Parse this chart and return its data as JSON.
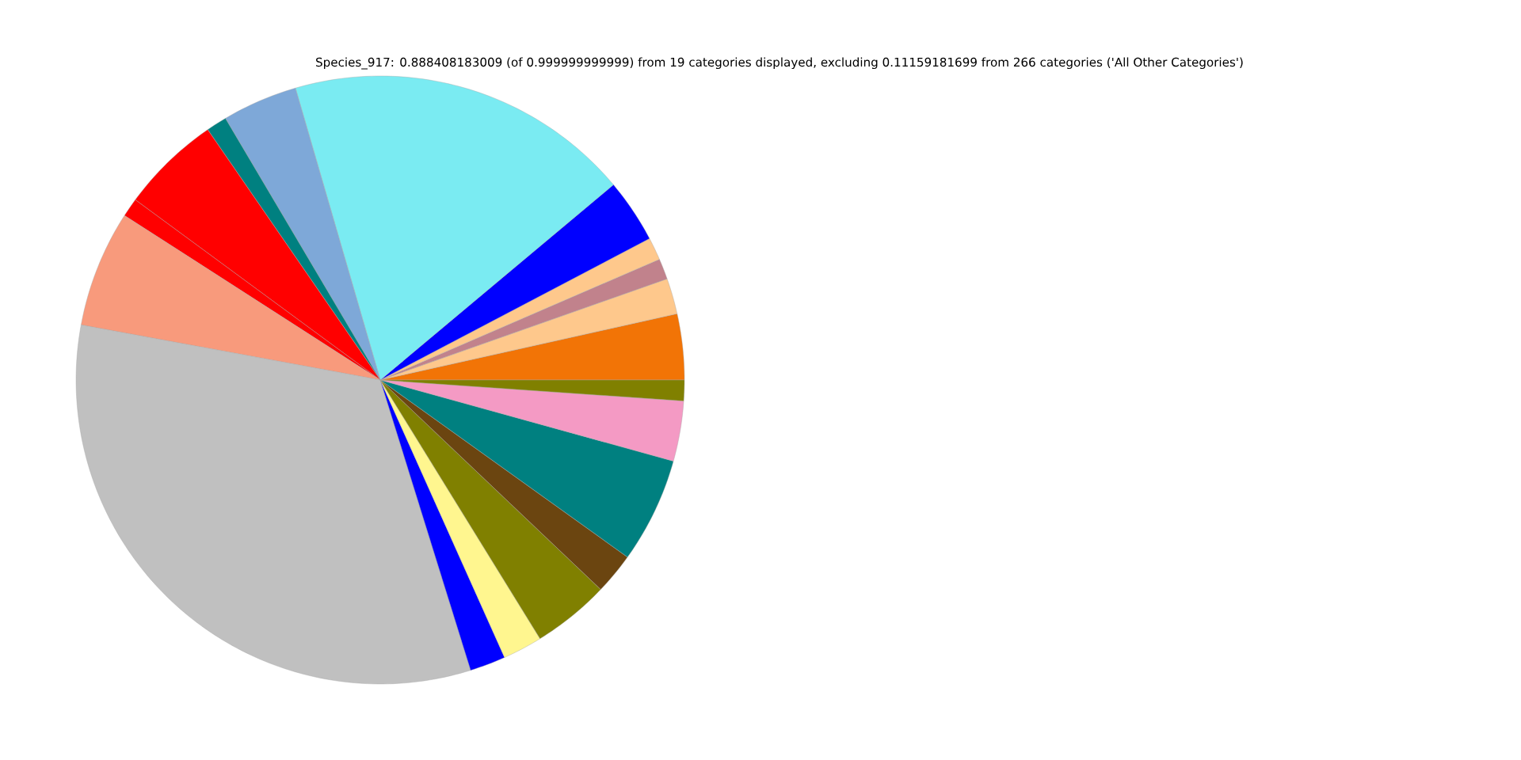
{
  "chart_data": {
    "type": "pie",
    "title": "Species_917: 0.888408183009 (of 0.999999999999) from 19 categories displayed, excluding 0.11159181699 from 266 categories ('All Other Categories')",
    "categories": [
      null,
      null,
      null,
      null,
      null,
      null,
      null,
      null,
      null,
      null,
      null,
      null,
      null,
      null,
      null,
      null,
      null,
      null,
      null
    ],
    "values": [
      3.5,
      1.9,
      1.1,
      1.2,
      3.4,
      18.4,
      4.0,
      1.1,
      5.3,
      1.0,
      6.2,
      32.7,
      1.9,
      2.1,
      4.1,
      2.2,
      5.6,
      3.2,
      1.1
    ],
    "colors": [
      "#f27406",
      "#fec88c",
      "#c1828c",
      "#fec88c",
      "#0000ff",
      "#7aebf2",
      "#7ea8d8",
      "#008080",
      "#ff0000",
      "#ff0000",
      "#f89a7c",
      "#c0c0c0",
      "#0000ff",
      "#fff68f",
      "#808000",
      "#6b4510",
      "#008080",
      "#f49ac4",
      "#808000"
    ]
  }
}
